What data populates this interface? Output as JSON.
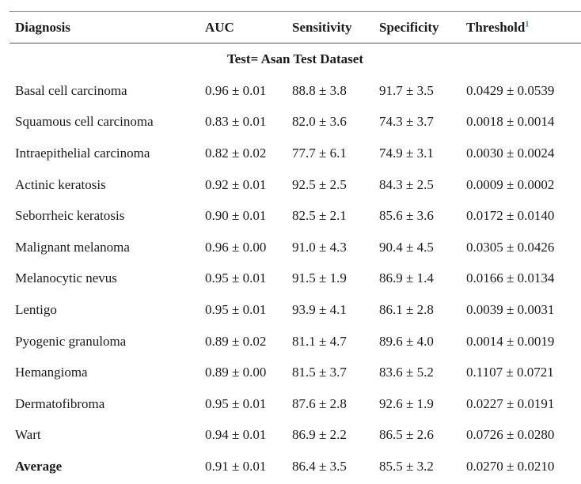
{
  "table": {
    "headers": {
      "diagnosis": "Diagnosis",
      "auc": "AUC",
      "sensitivity": "Sensitivity",
      "specificity": "Specificity",
      "threshold": "Threshold",
      "threshold_footnote": "1"
    },
    "group_label": "Test= Asan Test Dataset",
    "rows": [
      {
        "diagnosis": "Basal cell carcinoma",
        "auc": "0.96 ± 0.01",
        "sensitivity": "88.8 ± 3.8",
        "specificity": "91.7 ± 3.5",
        "threshold": "0.0429 ± 0.0539"
      },
      {
        "diagnosis": "Squamous cell carcinoma",
        "auc": "0.83 ± 0.01",
        "sensitivity": "82.0 ± 3.6",
        "specificity": "74.3 ± 3.7",
        "threshold": "0.0018 ± 0.0014"
      },
      {
        "diagnosis": "Intraepithelial carcinoma",
        "auc": "0.82 ± 0.02",
        "sensitivity": "77.7 ± 6.1",
        "specificity": "74.9 ± 3.1",
        "threshold": "0.0030 ± 0.0024"
      },
      {
        "diagnosis": "Actinic keratosis",
        "auc": "0.92 ± 0.01",
        "sensitivity": "92.5 ± 2.5",
        "specificity": "84.3 ± 2.5",
        "threshold": "0.0009 ± 0.0002"
      },
      {
        "diagnosis": "Seborrheic keratosis",
        "auc": "0.90 ± 0.01",
        "sensitivity": "82.5 ± 2.1",
        "specificity": "85.6 ± 3.6",
        "threshold": "0.0172 ± 0.0140"
      },
      {
        "diagnosis": "Malignant melanoma",
        "auc": "0.96 ± 0.00",
        "sensitivity": "91.0 ± 4.3",
        "specificity": "90.4 ± 4.5",
        "threshold": "0.0305 ± 0.0426"
      },
      {
        "diagnosis": "Melanocytic nevus",
        "auc": "0.95 ± 0.01",
        "sensitivity": "91.5 ± 1.9",
        "specificity": "86.9 ± 1.4",
        "threshold": "0.0166 ± 0.0134"
      },
      {
        "diagnosis": "Lentigo",
        "auc": "0.95 ± 0.01",
        "sensitivity": "93.9 ± 4.1",
        "specificity": "86.1 ± 2.8",
        "threshold": "0.0039 ± 0.0031"
      },
      {
        "diagnosis": "Pyogenic granuloma",
        "auc": "0.89 ± 0.02",
        "sensitivity": "81.1 ± 4.7",
        "specificity": "89.6 ± 4.0",
        "threshold": "0.0014 ± 0.0019"
      },
      {
        "diagnosis": "Hemangioma",
        "auc": "0.89 ± 0.00",
        "sensitivity": "81.5 ± 3.7",
        "specificity": "83.6 ± 5.2",
        "threshold": "0.1107 ± 0.0721"
      },
      {
        "diagnosis": "Dermatofibroma",
        "auc": "0.95 ± 0.01",
        "sensitivity": "87.6 ± 2.8",
        "specificity": "92.6 ± 1.9",
        "threshold": "0.0227 ± 0.0191"
      },
      {
        "diagnosis": "Wart",
        "auc": "0.94 ± 0.01",
        "sensitivity": "86.9 ± 2.2",
        "specificity": "86.5 ± 2.6",
        "threshold": "0.0726 ± 0.0280"
      }
    ],
    "average": {
      "diagnosis": "Average",
      "auc": "0.91 ± 0.01",
      "sensitivity": "86.4 ± 3.5",
      "specificity": "85.5 ± 3.2",
      "threshold": "0.0270 ± 0.0210"
    }
  }
}
